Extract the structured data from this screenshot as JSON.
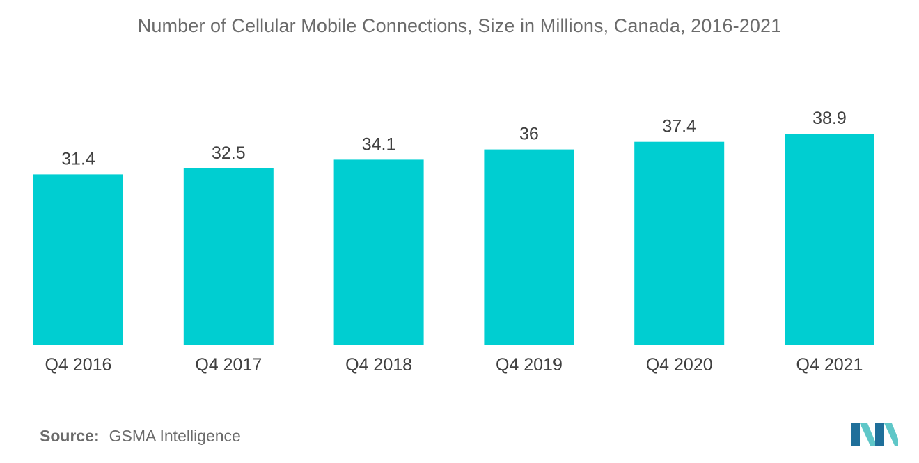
{
  "chart_data": {
    "type": "bar",
    "title": "Number of Cellular Mobile Connections, Size in Millions, Canada, 2016-2021",
    "categories": [
      "Q4 2016",
      "Q4 2017",
      "Q4 2018",
      "Q4 2019",
      "Q4 2020",
      "Q4 2021"
    ],
    "values": [
      31.4,
      32.5,
      34.1,
      36,
      37.4,
      38.9
    ],
    "value_labels": [
      "31.4",
      "32.5",
      "34.1",
      "36",
      "37.4",
      "38.9"
    ],
    "xlabel": "",
    "ylabel": "",
    "ylim": [
      0,
      38.9
    ],
    "grid": false,
    "bar_color": "#00CED1"
  },
  "source": {
    "label": "Source:",
    "text": "GSMA Intelligence"
  },
  "logo": {
    "icon": "mordor-intelligence-logo-icon",
    "colors": [
      "#1f6f9a",
      "#5fc7c8"
    ]
  }
}
